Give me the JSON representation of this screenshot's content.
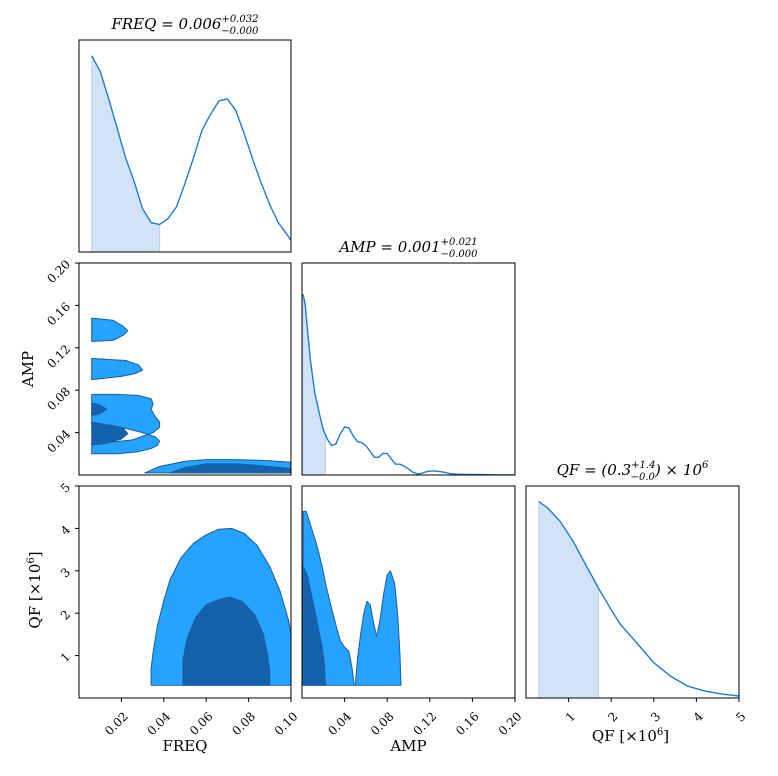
{
  "figure": {
    "type": "corner-plot",
    "parameters": [
      "FREQ",
      "AMP",
      "QF"
    ],
    "colors": {
      "line": "#1f7bd6",
      "fill_light": "#d3e3f7",
      "contour_outer": "#26a3ff",
      "contour_inner": "#1461ae",
      "contour_edge": "#1a5c9c"
    }
  },
  "chart_data": [
    {
      "type": "line",
      "panel": "FREQ-marginal",
      "title_left": "FREQ = 0.006",
      "title_sup": "+0.032",
      "title_sub": "−0.000",
      "xlim": [
        0.0,
        0.1
      ],
      "shaded_interval": [
        0.006,
        0.038
      ],
      "x": [
        0.006,
        0.01,
        0.014,
        0.018,
        0.022,
        0.026,
        0.03,
        0.034,
        0.038,
        0.042,
        0.046,
        0.05,
        0.054,
        0.058,
        0.062,
        0.066,
        0.07,
        0.074,
        0.078,
        0.082,
        0.086,
        0.09,
        0.094,
        0.098,
        0.1
      ],
      "y": [
        1.0,
        0.92,
        0.78,
        0.63,
        0.48,
        0.36,
        0.22,
        0.15,
        0.14,
        0.17,
        0.23,
        0.35,
        0.48,
        0.62,
        0.7,
        0.77,
        0.78,
        0.72,
        0.6,
        0.47,
        0.35,
        0.24,
        0.15,
        0.09,
        0.06
      ]
    },
    {
      "type": "contour",
      "panel": "FREQ-vs-AMP",
      "xlabel": "",
      "ylabel": "AMP",
      "xlim": [
        0.0,
        0.1
      ],
      "ylim": [
        0.0,
        0.2
      ],
      "yticks": [
        "0.04",
        "0.08",
        "0.12",
        "0.16",
        "0.20"
      ],
      "levels": [
        {
          "level": "outer",
          "polygons": [
            [
              [
                0.006,
                0.148
              ],
              [
                0.016,
                0.146
              ],
              [
                0.021,
                0.14
              ],
              [
                0.023,
                0.136
              ],
              [
                0.021,
                0.132
              ],
              [
                0.016,
                0.127
              ],
              [
                0.006,
                0.126
              ]
            ],
            [
              [
                0.006,
                0.11
              ],
              [
                0.022,
                0.108
              ],
              [
                0.028,
                0.104
              ],
              [
                0.03,
                0.099
              ],
              [
                0.027,
                0.096
              ],
              [
                0.02,
                0.093
              ],
              [
                0.006,
                0.09
              ]
            ],
            [
              [
                0.006,
                0.076
              ],
              [
                0.018,
                0.076
              ],
              [
                0.028,
                0.075
              ],
              [
                0.034,
                0.072
              ],
              [
                0.035,
                0.067
              ],
              [
                0.034,
                0.062
              ],
              [
                0.036,
                0.055
              ],
              [
                0.038,
                0.05
              ],
              [
                0.038,
                0.045
              ],
              [
                0.035,
                0.04
              ],
              [
                0.025,
                0.033
              ],
              [
                0.015,
                0.031
              ],
              [
                0.006,
                0.03
              ],
              [
                0.006,
                0.02
              ],
              [
                0.018,
                0.02
              ],
              [
                0.028,
                0.022
              ],
              [
                0.034,
                0.025
              ],
              [
                0.037,
                0.028
              ],
              [
                0.038,
                0.032
              ],
              [
                0.036,
                0.036
              ],
              [
                0.03,
                0.04
              ],
              [
                0.022,
                0.044
              ],
              [
                0.015,
                0.047
              ],
              [
                0.006,
                0.048
              ]
            ],
            [
              [
                0.031,
                0.002
              ],
              [
                0.038,
                0.008
              ],
              [
                0.05,
                0.013
              ],
              [
                0.06,
                0.0145
              ],
              [
                0.075,
                0.0145
              ],
              [
                0.09,
                0.0135
              ],
              [
                0.1,
                0.012
              ],
              [
                0.1,
                0.002
              ]
            ]
          ]
        },
        {
          "level": "inner",
          "polygons": [
            [
              [
                0.006,
                0.068
              ],
              [
                0.01,
                0.066
              ],
              [
                0.013,
                0.062
              ],
              [
                0.01,
                0.058
              ],
              [
                0.006,
                0.056
              ]
            ],
            [
              [
                0.006,
                0.05
              ],
              [
                0.014,
                0.047
              ],
              [
                0.021,
                0.044
              ],
              [
                0.023,
                0.039
              ],
              [
                0.02,
                0.034
              ],
              [
                0.013,
                0.03
              ],
              [
                0.006,
                0.028
              ]
            ],
            [
              [
                0.043,
                0.002
              ],
              [
                0.05,
                0.007
              ],
              [
                0.06,
                0.0105
              ],
              [
                0.075,
                0.0105
              ],
              [
                0.09,
                0.008
              ],
              [
                0.1,
                0.006
              ],
              [
                0.1,
                0.002
              ]
            ]
          ]
        }
      ]
    },
    {
      "type": "line",
      "panel": "AMP-marginal",
      "title_left": "AMP = 0.001",
      "title_sup": "+0.021",
      "title_sub": "−0.000",
      "xlim": [
        0.0,
        0.2
      ],
      "shaded_interval": [
        0.001,
        0.022
      ],
      "x": [
        0.001,
        0.003,
        0.005,
        0.008,
        0.012,
        0.016,
        0.02,
        0.024,
        0.028,
        0.032,
        0.036,
        0.04,
        0.044,
        0.048,
        0.052,
        0.056,
        0.06,
        0.064,
        0.068,
        0.072,
        0.076,
        0.08,
        0.084,
        0.088,
        0.092,
        0.096,
        0.1,
        0.104,
        0.108,
        0.112,
        0.116,
        0.12,
        0.126,
        0.134,
        0.14,
        0.146,
        0.152,
        0.16,
        0.17,
        0.18,
        0.2
      ],
      "y": [
        0.92,
        0.87,
        0.75,
        0.58,
        0.42,
        0.32,
        0.23,
        0.18,
        0.15,
        0.16,
        0.21,
        0.245,
        0.24,
        0.2,
        0.17,
        0.165,
        0.15,
        0.12,
        0.09,
        0.09,
        0.11,
        0.11,
        0.08,
        0.055,
        0.055,
        0.045,
        0.03,
        0.015,
        0.006,
        0.008,
        0.016,
        0.02,
        0.02,
        0.014,
        0.006,
        0.004,
        0.003,
        0.003,
        0.002,
        0.001,
        0.0
      ]
    },
    {
      "type": "contour",
      "panel": "FREQ-vs-QF",
      "xlabel": "FREQ",
      "ylabel": "QF [×10",
      "ylabel_sup": "6",
      "ylabel_tail": "]",
      "xlim": [
        0.0,
        0.1
      ],
      "ylim": [
        0.0,
        5.0
      ],
      "xticks": [
        "0.02",
        "0.04",
        "0.06",
        "0.08",
        "0.10"
      ],
      "yticks": [
        "1",
        "2",
        "3",
        "4",
        "5"
      ],
      "levels": [
        {
          "level": "outer",
          "polygons": [
            [
              [
                0.034,
                0.3
              ],
              [
                0.034,
                0.7
              ],
              [
                0.035,
                1.1
              ],
              [
                0.037,
                1.7
              ],
              [
                0.04,
                2.3
              ],
              [
                0.043,
                2.8
              ],
              [
                0.048,
                3.3
              ],
              [
                0.054,
                3.65
              ],
              [
                0.06,
                3.85
              ],
              [
                0.066,
                3.98
              ],
              [
                0.072,
                4.0
              ],
              [
                0.078,
                3.88
              ],
              [
                0.084,
                3.6
              ],
              [
                0.09,
                3.1
              ],
              [
                0.095,
                2.5
              ],
              [
                0.099,
                1.8
              ],
              [
                0.1,
                1.5
              ],
              [
                0.1,
                0.3
              ]
            ]
          ]
        },
        {
          "level": "inner",
          "polygons": [
            [
              [
                0.049,
                0.3
              ],
              [
                0.049,
                0.9
              ],
              [
                0.051,
                1.4
              ],
              [
                0.055,
                1.9
              ],
              [
                0.06,
                2.2
              ],
              [
                0.066,
                2.32
              ],
              [
                0.071,
                2.38
              ],
              [
                0.077,
                2.28
              ],
              [
                0.083,
                1.95
              ],
              [
                0.087,
                1.5
              ],
              [
                0.089,
                1.0
              ],
              [
                0.09,
                0.6
              ],
              [
                0.09,
                0.3
              ]
            ]
          ]
        }
      ]
    },
    {
      "type": "contour",
      "panel": "AMP-vs-QF",
      "xlabel": "AMP",
      "ylabel": "",
      "xlim": [
        0.0,
        0.2
      ],
      "ylim": [
        0.0,
        5.0
      ],
      "xticks": [
        "0.04",
        "0.08",
        "0.12",
        "0.16",
        "0.20"
      ],
      "levels": [
        {
          "level": "outer",
          "polygons": [
            [
              [
                0.001,
                0.3
              ],
              [
                0.001,
                4.4
              ],
              [
                0.004,
                4.4
              ],
              [
                0.009,
                4.0
              ],
              [
                0.014,
                3.6
              ],
              [
                0.019,
                3.1
              ],
              [
                0.023,
                2.6
              ],
              [
                0.028,
                2.1
              ],
              [
                0.032,
                1.7
              ],
              [
                0.036,
                1.35
              ],
              [
                0.04,
                1.2
              ],
              [
                0.044,
                1.1
              ],
              [
                0.047,
                0.7
              ],
              [
                0.049,
                0.3
              ],
              [
                0.05,
                0.3
              ],
              [
                0.052,
                0.9
              ],
              [
                0.055,
                1.5
              ],
              [
                0.058,
                2.0
              ],
              [
                0.061,
                2.28
              ],
              [
                0.064,
                2.2
              ],
              [
                0.067,
                1.8
              ],
              [
                0.07,
                1.45
              ],
              [
                0.073,
                1.8
              ],
              [
                0.077,
                2.5
              ],
              [
                0.08,
                2.9
              ],
              [
                0.083,
                3.0
              ],
              [
                0.087,
                2.7
              ],
              [
                0.09,
                1.9
              ],
              [
                0.092,
                1.0
              ],
              [
                0.093,
                0.3
              ]
            ]
          ]
        },
        {
          "level": "inner",
          "polygons": [
            [
              [
                0.001,
                0.3
              ],
              [
                0.001,
                3.1
              ],
              [
                0.005,
                2.9
              ],
              [
                0.01,
                2.3
              ],
              [
                0.015,
                1.7
              ],
              [
                0.019,
                1.2
              ],
              [
                0.021,
                0.8
              ],
              [
                0.022,
                0.3
              ]
            ]
          ]
        }
      ]
    },
    {
      "type": "line",
      "panel": "QF-marginal",
      "title_left": "QF = (0.3",
      "title_sup": "+1.4",
      "title_sub": "−0.0",
      "title_right": ") × 10",
      "title_right_sup": "6",
      "xlabel": "QF [×10",
      "xlabel_sup": "6",
      "xlabel_tail": "]",
      "xlim": [
        0.0,
        5.0
      ],
      "xticks": [
        "1",
        "2",
        "3",
        "4",
        "5"
      ],
      "shaded_interval": [
        0.3,
        1.7
      ],
      "x": [
        0.3,
        0.5,
        0.8,
        1.1,
        1.4,
        1.7,
        2.0,
        2.2,
        2.6,
        3.0,
        3.4,
        3.8,
        4.2,
        4.6,
        5.0
      ],
      "y": [
        1.0,
        0.97,
        0.9,
        0.8,
        0.68,
        0.56,
        0.45,
        0.38,
        0.28,
        0.18,
        0.11,
        0.06,
        0.035,
        0.02,
        0.01
      ]
    }
  ]
}
